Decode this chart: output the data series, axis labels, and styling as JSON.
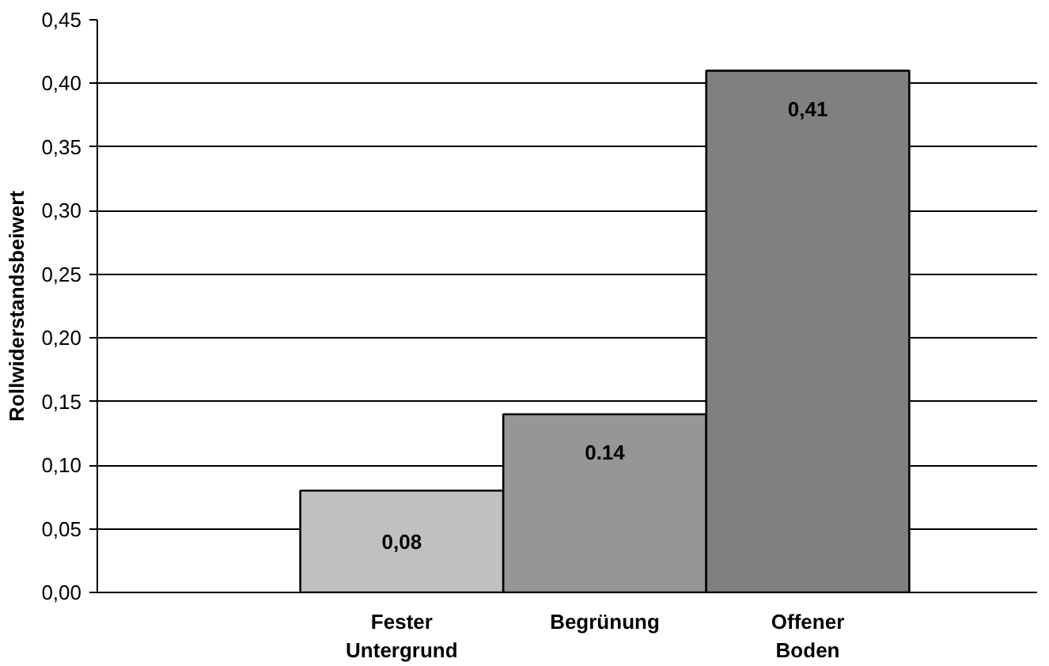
{
  "chart_data": {
    "type": "bar",
    "ylabel": "Rollwiderstandsbeiwert",
    "categories": [
      "Fester Untergrund",
      "Begrünung",
      "Offener Boden"
    ],
    "values": [
      0.08,
      0.14,
      0.41
    ],
    "colors": [
      "#c0c0c0",
      "#969696",
      "#808080"
    ],
    "value_labels": [
      "0,08",
      "0.14",
      "0,41"
    ],
    "ylim": [
      0,
      0.45
    ],
    "yticks": [
      {
        "value": 0,
        "label": "0,00"
      },
      {
        "value": 0.05,
        "label": "0,05"
      },
      {
        "value": 0.1,
        "label": "0,10"
      },
      {
        "value": 0.15,
        "label": "0,15"
      },
      {
        "value": 0.2,
        "label": "0,20"
      },
      {
        "value": 0.25,
        "label": "0,25"
      },
      {
        "value": 0.3,
        "label": "0,30"
      },
      {
        "value": 0.35,
        "label": "0,35"
      },
      {
        "value": 0.4,
        "label": "0,40"
      },
      {
        "value": 0.45,
        "label": "0,45"
      }
    ],
    "grid": "y"
  }
}
